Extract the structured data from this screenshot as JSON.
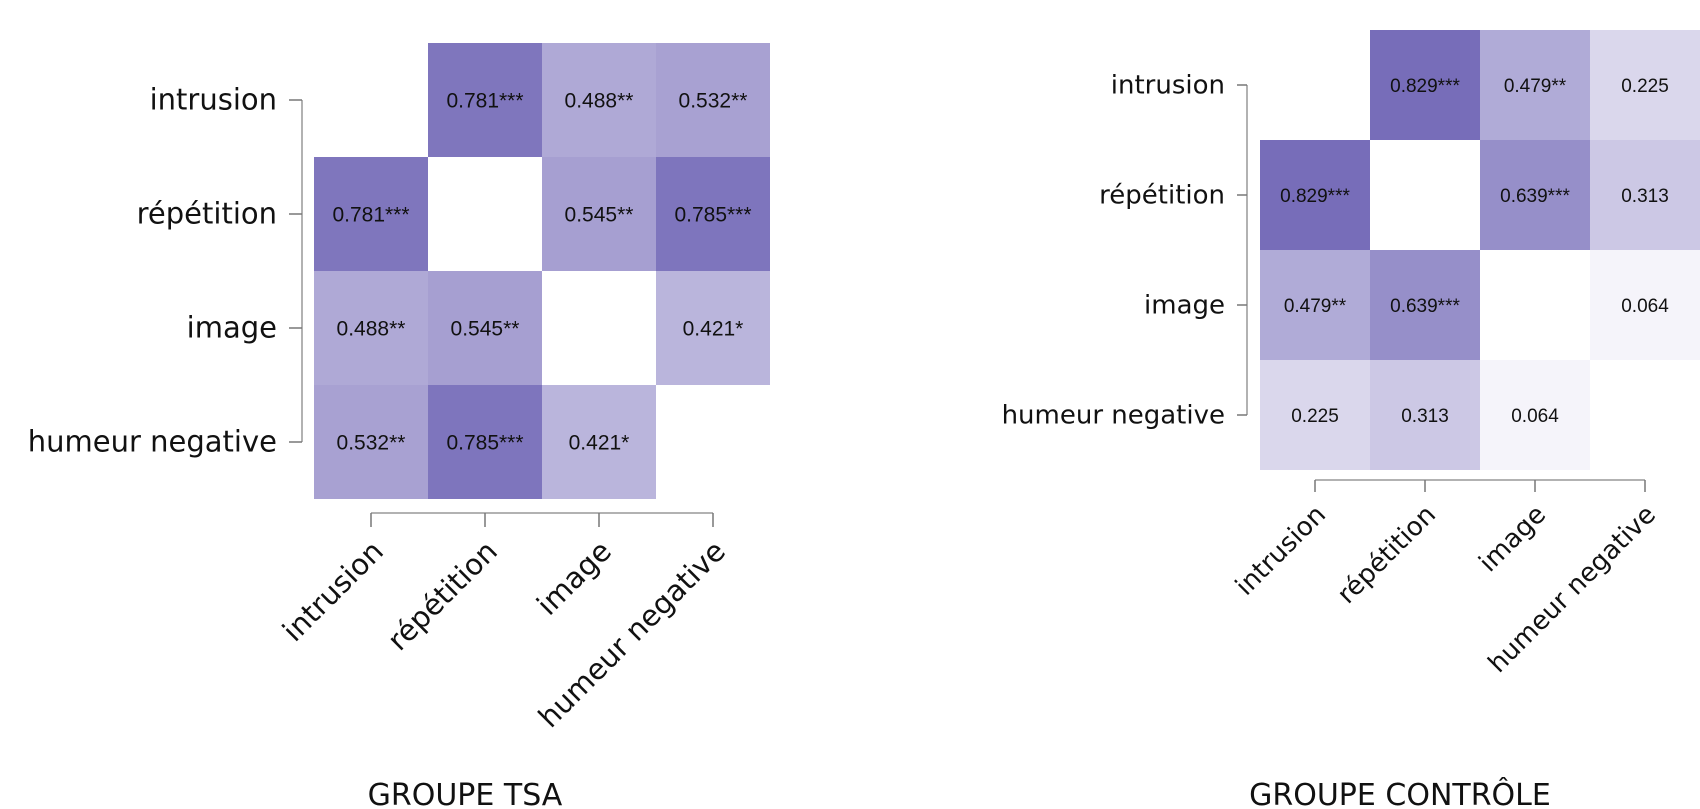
{
  "chart_data": [
    {
      "type": "heatmap",
      "title": "GROUPE TSA",
      "variables": [
        "intrusion",
        "répétition",
        "image",
        "humeur negative"
      ],
      "diagonal": "blank",
      "matrix": [
        [
          null,
          0.781,
          0.488,
          0.532
        ],
        [
          0.781,
          null,
          0.545,
          0.785
        ],
        [
          0.488,
          0.545,
          null,
          0.421
        ],
        [
          0.532,
          0.785,
          0.421,
          null
        ]
      ],
      "labels": [
        [
          null,
          "0.781***",
          "0.488**",
          "0.532**"
        ],
        [
          "0.781***",
          null,
          "0.545**",
          "0.785***"
        ],
        [
          "0.488**",
          "0.545**",
          null,
          "0.421*"
        ],
        [
          "0.532**",
          "0.785***",
          "0.421*",
          null
        ]
      ],
      "color_scale": {
        "low": "#ffffff",
        "high": "#5b4fab",
        "range": [
          0,
          1
        ]
      },
      "grid": false
    },
    {
      "type": "heatmap",
      "title": "GROUPE CONTRÔLE",
      "variables": [
        "intrusion",
        "répétition",
        "image",
        "humeur negative"
      ],
      "diagonal": "blank",
      "matrix": [
        [
          null,
          0.829,
          0.479,
          0.225
        ],
        [
          0.829,
          null,
          0.639,
          0.313
        ],
        [
          0.479,
          0.639,
          null,
          0.064
        ],
        [
          0.225,
          0.313,
          0.064,
          null
        ]
      ],
      "labels": [
        [
          null,
          "0.829***",
          "0.479**",
          "0.225"
        ],
        [
          "0.829***",
          null,
          "0.639***",
          "0.313"
        ],
        [
          "0.479**",
          "0.639***",
          null,
          "0.064"
        ],
        [
          "0.225",
          "0.313",
          "0.064",
          null
        ]
      ],
      "color_scale": {
        "low": "#ffffff",
        "high": "#5b4fab",
        "range": [
          0,
          1
        ]
      },
      "grid": false
    }
  ]
}
